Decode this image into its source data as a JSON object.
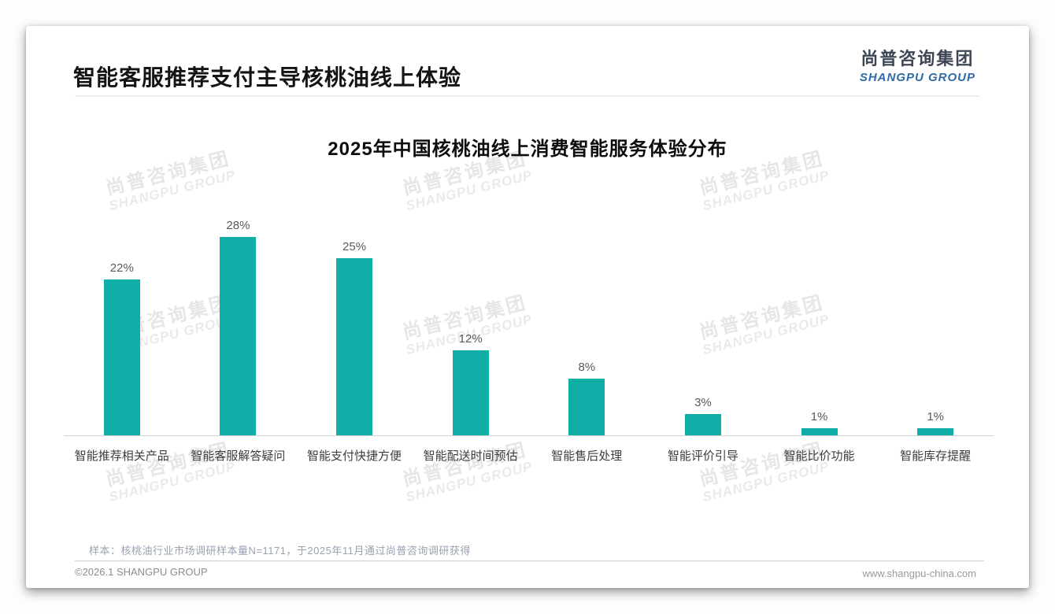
{
  "page": {
    "title": "智能客服推荐支付主导核桃油线上体验",
    "logo": {
      "cn": "尚普咨询集团",
      "en": "SHANGPU GROUP"
    },
    "watermark": {
      "cn": "尚普咨询集团",
      "en": "SHANGPU GROUP"
    },
    "footer": {
      "note": "样本：核桃油行业市场调研样本量N=1171，于2025年11月通过尚普咨询调研获得",
      "copyright": "©2026.1 SHANGPU GROUP",
      "website": "www.shangpu-china.com"
    }
  },
  "chart_data": {
    "type": "bar",
    "title": "2025年中国核桃油线上消费智能服务体验分布",
    "categories": [
      "智能推荐相关产品",
      "智能客服解答疑问",
      "智能支付快捷方便",
      "智能配送时间预估",
      "智能售后处理",
      "智能评价引导",
      "智能比价功能",
      "智能库存提醒"
    ],
    "values": [
      22,
      28,
      25,
      12,
      8,
      3,
      1,
      1
    ],
    "unit": "%",
    "bar_color": "#0fafa8",
    "ylim": [
      0,
      30
    ],
    "grid": false,
    "legend": false,
    "xlabel": "",
    "ylabel": ""
  }
}
